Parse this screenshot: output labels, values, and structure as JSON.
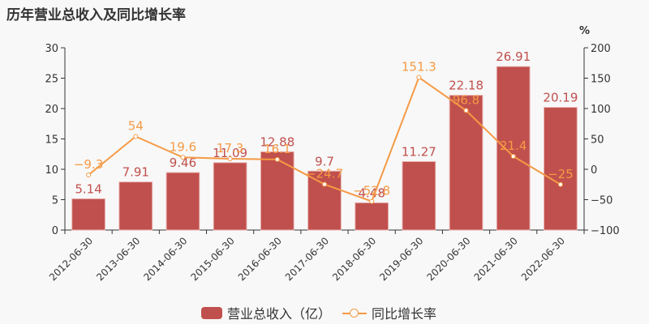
{
  "title": "历年营业总收入及同比增长率",
  "legend": {
    "bar_label": "营业总收入（亿）",
    "line_label": "同比增长率"
  },
  "colors": {
    "bar": "#c0504d",
    "line": "#f59a45",
    "axis": "#333333"
  },
  "right_axis_unit": "%",
  "chart_data": {
    "type": "bar",
    "title": "历年营业总收入及同比增长率",
    "categories": [
      "2012-06-30",
      "2013-06-30",
      "2014-06-30",
      "2015-06-30",
      "2016-06-30",
      "2017-06-30",
      "2018-06-30",
      "2019-06-30",
      "2020-06-30",
      "2021-06-30",
      "2022-06-30"
    ],
    "series": [
      {
        "name": "营业总收入（亿）",
        "type": "bar",
        "axis": "left",
        "values": [
          5.14,
          7.91,
          9.46,
          11.09,
          12.88,
          9.7,
          4.48,
          11.27,
          22.18,
          26.91,
          20.19
        ]
      },
      {
        "name": "同比增长率",
        "type": "line",
        "axis": "right",
        "values": [
          -9.3,
          54,
          19.6,
          17.3,
          16.1,
          -24.7,
          -52.8,
          151.3,
          96.8,
          21.4,
          -25
        ]
      }
    ],
    "left_axis": {
      "ylim": [
        0,
        30
      ],
      "ticks": [
        0,
        5,
        10,
        15,
        20,
        25,
        30
      ]
    },
    "right_axis": {
      "ylim": [
        -100,
        200
      ],
      "ticks": [
        -100,
        -50,
        0,
        50,
        100,
        150,
        200
      ],
      "label": "%"
    },
    "xlabel": "",
    "ylabel": "",
    "grid": false,
    "legend_position": "bottom"
  }
}
